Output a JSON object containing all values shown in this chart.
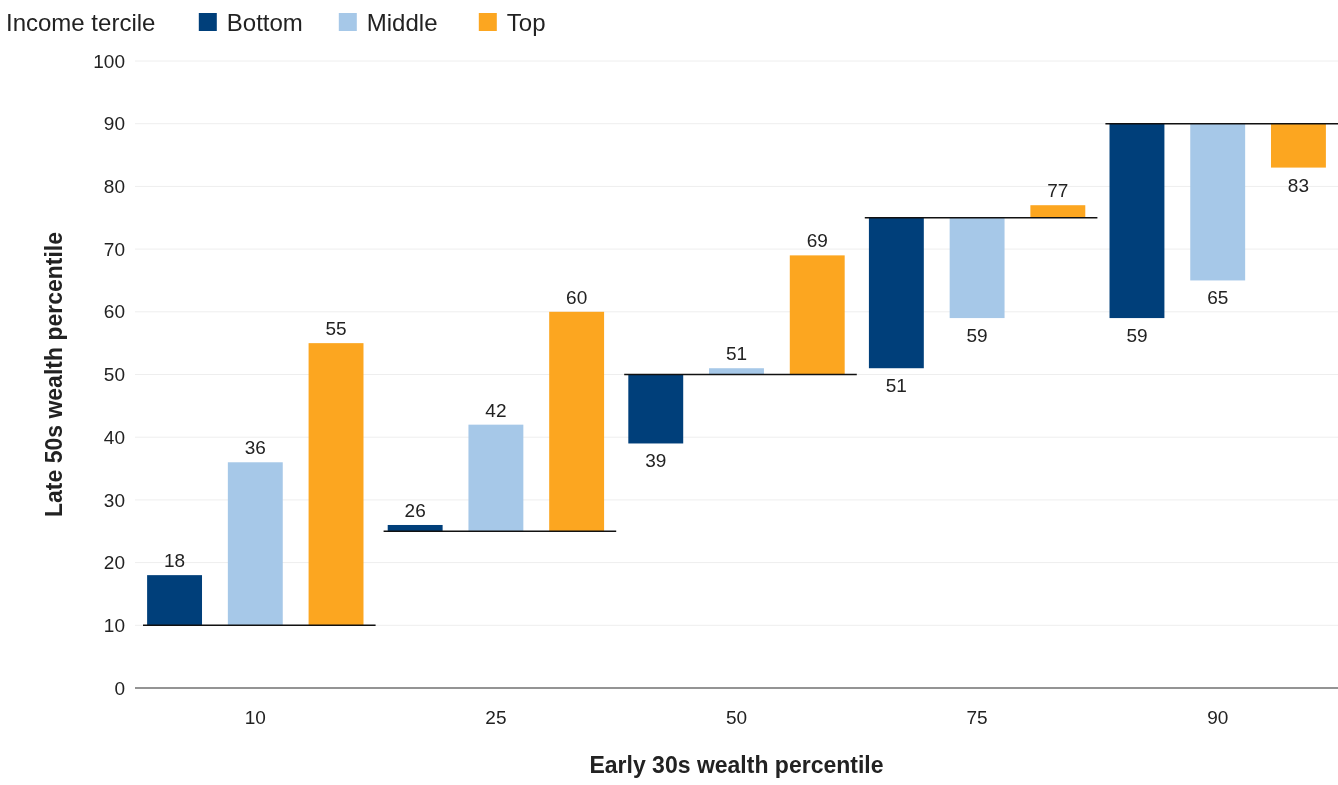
{
  "chart_data": {
    "type": "bar",
    "xlabel": "Early 30s wealth percentile",
    "ylabel": "Late 50s wealth percentile",
    "legend_title": "Income tercile",
    "legend": "top left",
    "categories": [
      "10",
      "25",
      "50",
      "75",
      "90"
    ],
    "series": [
      {
        "name": "Bottom",
        "color": "#003f7a",
        "base": [
          10,
          25,
          50,
          75,
          90
        ],
        "values": [
          8,
          1,
          -11,
          -24,
          -31
        ],
        "value_labels": [
          "18",
          "26",
          "39",
          "51",
          "59"
        ]
      },
      {
        "name": "Middle",
        "color": "#a6c8e8",
        "base": [
          10,
          25,
          50,
          75,
          90
        ],
        "values": [
          26,
          17,
          1,
          -16,
          -25
        ],
        "value_labels": [
          "36",
          "42",
          "51",
          "59",
          "65"
        ]
      },
      {
        "name": "Top",
        "color": "#fca620",
        "base": [
          10,
          25,
          50,
          75,
          90
        ],
        "values": [
          45,
          35,
          19,
          2,
          -7
        ],
        "value_labels": [
          "55",
          "60",
          "69",
          "77",
          "83"
        ]
      }
    ],
    "ylim": [
      0,
      100
    ],
    "yticks": [
      0,
      10,
      20,
      30,
      40,
      50,
      60,
      70,
      80,
      90,
      100
    ],
    "grid": "y"
  }
}
